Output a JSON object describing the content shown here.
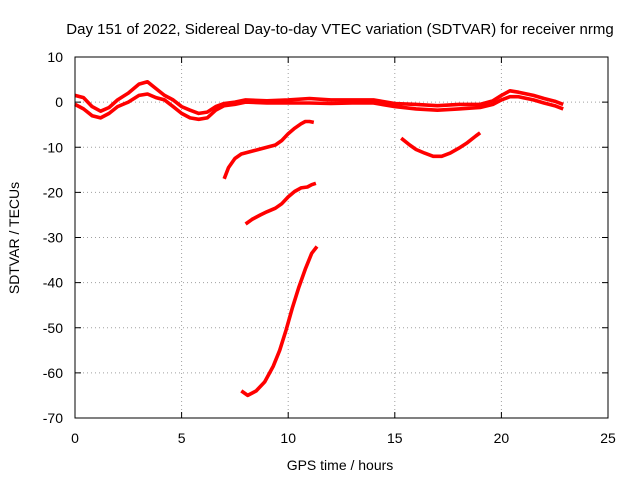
{
  "chart_data": {
    "type": "scatter",
    "title": "Day 151 of 2022, Sidereal Day-to-day VTEC variation (SDTVAR) for receiver nrmg",
    "xlabel": "GPS time / hours",
    "ylabel": "SDTVAR / TECUs",
    "xlim": [
      0,
      25
    ],
    "ylim": [
      -70,
      10
    ],
    "xticks": [
      0,
      5,
      10,
      15,
      20,
      25
    ],
    "yticks": [
      10,
      0,
      -10,
      -20,
      -30,
      -40,
      -50,
      -60,
      -70
    ],
    "xtick_labels": [
      "0",
      "5",
      "10",
      "15",
      "20",
      "25"
    ],
    "ytick_labels": [
      "10",
      "0",
      "-10",
      "-20",
      "-30",
      "-40",
      "-50",
      "-60",
      "-70"
    ],
    "grid": true,
    "legend": "none",
    "color": "#ff0000",
    "series": [
      {
        "name": "main-track-upper",
        "x": [
          0.0,
          0.4,
          0.8,
          1.2,
          1.6,
          2.0,
          2.5,
          3.0,
          3.4,
          3.8,
          4.2,
          4.6,
          5.0,
          5.4,
          5.8,
          6.2,
          6.6,
          7.0,
          7.5,
          8.0,
          9.0,
          10.0,
          11.0,
          12.0,
          13.0,
          14.0,
          15.0,
          16.0,
          17.0,
          18.0,
          19.0,
          19.6,
          20.0,
          20.4,
          20.8,
          21.5,
          22.0,
          22.5,
          22.9
        ],
        "y": [
          1.5,
          1.0,
          -1.0,
          -2.0,
          -1.2,
          0.5,
          2.0,
          4.0,
          4.5,
          3.0,
          1.5,
          0.5,
          -1.0,
          -1.8,
          -2.5,
          -2.2,
          -1.0,
          -0.3,
          0.0,
          0.5,
          0.3,
          0.5,
          0.8,
          0.5,
          0.5,
          0.5,
          -0.3,
          -0.5,
          -0.8,
          -0.5,
          -0.5,
          0.3,
          1.5,
          2.5,
          2.2,
          1.5,
          0.8,
          0.2,
          -0.5
        ]
      },
      {
        "name": "main-track-lower",
        "x": [
          0.0,
          0.4,
          0.8,
          1.2,
          1.6,
          2.0,
          2.5,
          3.0,
          3.4,
          3.8,
          4.2,
          4.6,
          5.0,
          5.4,
          5.8,
          6.2,
          6.6,
          7.0,
          7.5,
          8.0,
          9.0,
          10.0,
          11.0,
          12.0,
          13.0,
          14.0,
          15.0,
          16.0,
          17.0,
          18.0,
          19.0,
          19.6,
          20.0,
          20.4,
          20.8,
          21.5,
          22.0,
          22.5,
          22.9
        ],
        "y": [
          -0.5,
          -1.5,
          -3.0,
          -3.5,
          -2.5,
          -1.0,
          0.0,
          1.5,
          1.8,
          1.0,
          0.5,
          -1.0,
          -2.5,
          -3.5,
          -3.8,
          -3.5,
          -1.8,
          -0.8,
          -0.5,
          0.0,
          -0.2,
          -0.2,
          -0.2,
          -0.3,
          -0.2,
          -0.2,
          -1.0,
          -1.5,
          -1.8,
          -1.5,
          -1.2,
          -0.5,
          0.5,
          1.2,
          1.2,
          0.5,
          -0.2,
          -0.8,
          -1.5
        ]
      },
      {
        "name": "arc-a",
        "x": [
          7.0,
          7.2,
          7.5,
          7.8,
          8.2,
          8.6,
          9.0,
          9.4,
          9.7,
          10.0,
          10.3,
          10.6,
          10.8,
          11.0,
          11.2
        ],
        "y": [
          -17.0,
          -14.5,
          -12.5,
          -11.5,
          -11.0,
          -10.5,
          -10.0,
          -9.5,
          -8.5,
          -7.0,
          -5.8,
          -4.8,
          -4.3,
          -4.3,
          -4.5
        ]
      },
      {
        "name": "arc-b",
        "x": [
          8.0,
          8.3,
          8.7,
          9.0,
          9.4,
          9.7,
          10.0,
          10.3,
          10.6,
          10.9,
          11.1,
          11.3
        ],
        "y": [
          -27.0,
          -26.0,
          -25.0,
          -24.3,
          -23.5,
          -22.5,
          -21.0,
          -19.8,
          -19.0,
          -18.8,
          -18.3,
          -18.0
        ]
      },
      {
        "name": "arc-c",
        "x": [
          7.8,
          8.1,
          8.5,
          8.9,
          9.3,
          9.6,
          9.9,
          10.2,
          10.5,
          10.8,
          11.1,
          11.35
        ],
        "y": [
          -64.0,
          -65.0,
          -64.0,
          -62.0,
          -58.5,
          -55.0,
          -50.5,
          -45.5,
          -41.0,
          -37.0,
          -33.5,
          -32.0
        ]
      },
      {
        "name": "arc-d",
        "x": [
          15.3,
          15.7,
          16.0,
          16.4,
          16.8,
          17.2,
          17.6,
          18.0,
          18.4,
          18.8,
          19.0
        ],
        "y": [
          -8.0,
          -9.5,
          -10.5,
          -11.3,
          -12.0,
          -12.0,
          -11.3,
          -10.2,
          -9.0,
          -7.5,
          -6.8
        ]
      }
    ]
  }
}
